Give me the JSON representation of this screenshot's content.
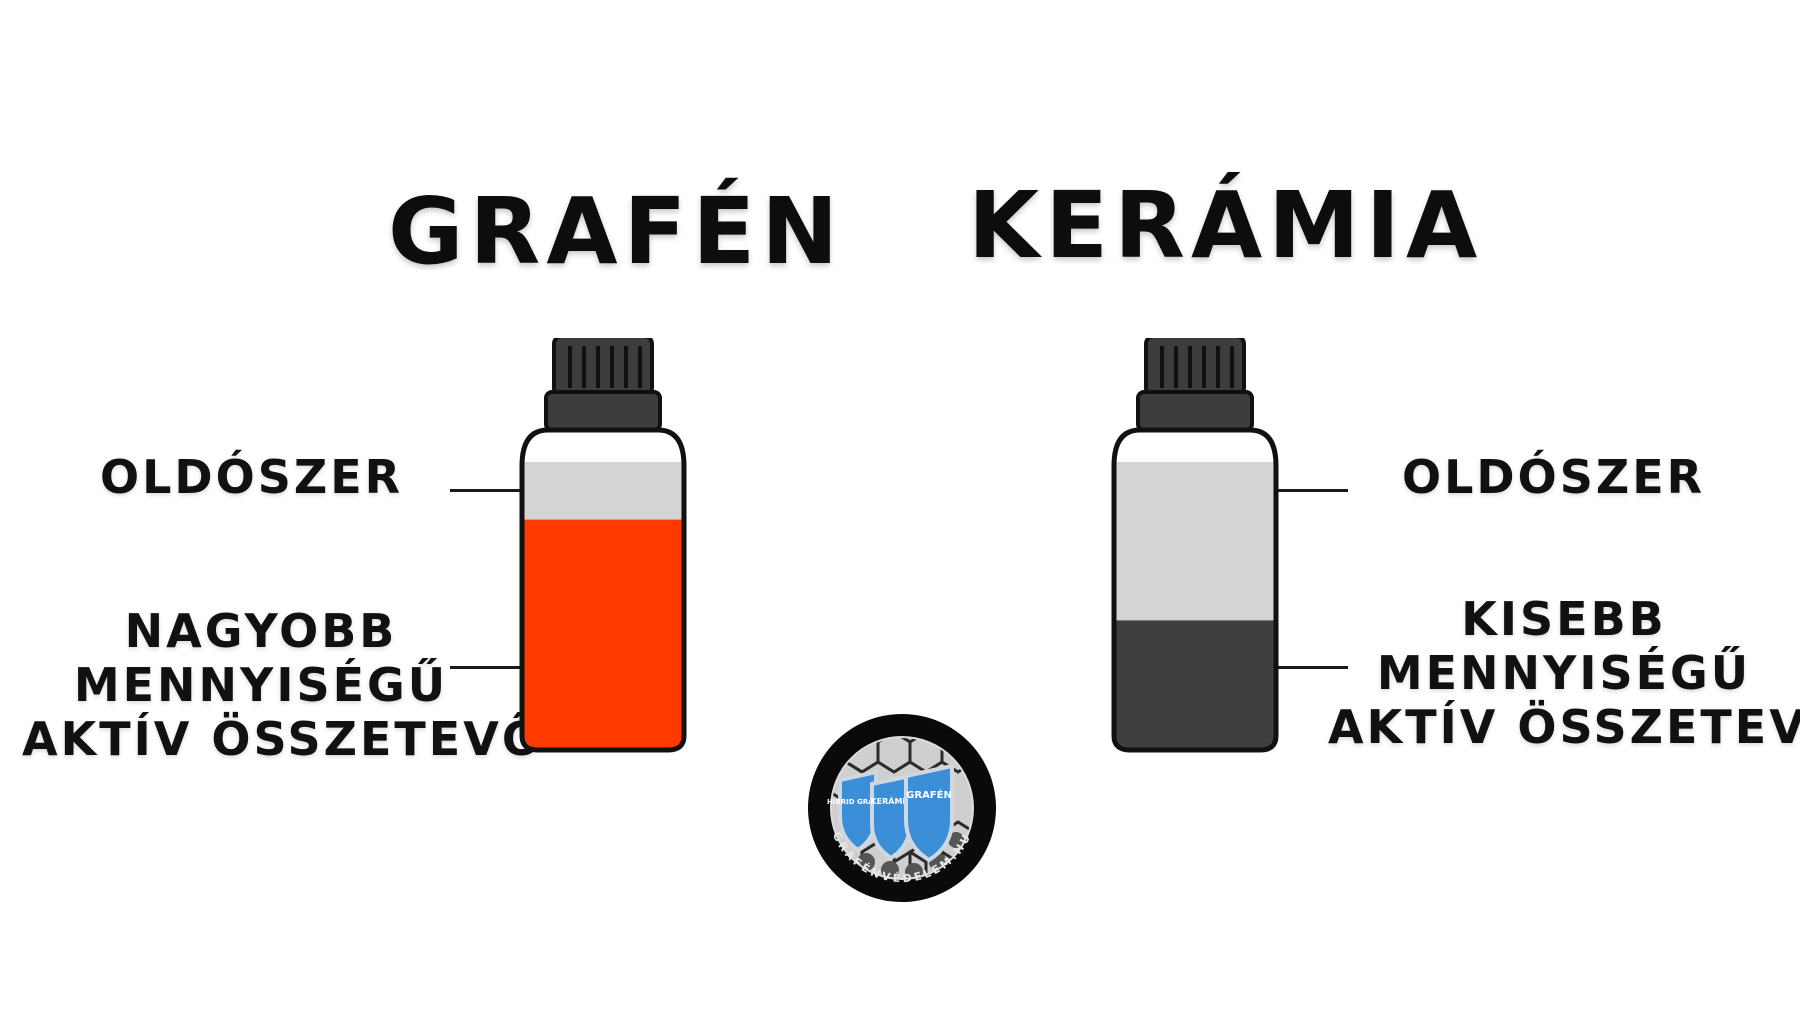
{
  "left": {
    "title": "GRAFÉN",
    "solvent_label": "OLDÓSZER",
    "active_label_lines": [
      "NAGYOBB",
      "MENNYISÉGŰ",
      "AKTÍV ÖSSZETEVŐ"
    ],
    "fill_color": "#ff3a00",
    "solvent_color": "#d4d4d4",
    "active_fraction": 0.8
  },
  "right": {
    "title": "KERÁMIA",
    "solvent_label": "OLDÓSZER",
    "active_label_lines": [
      "KISEBB",
      "MENNYISÉGŰ",
      "AKTÍV ÖSSZETEVŐ"
    ],
    "fill_color": "#3f3f3f",
    "solvent_color": "#d4d4d4",
    "active_fraction": 0.45
  },
  "logo": {
    "shield_labels": [
      "HIBRID GRAFÉN",
      "KERÁMIA",
      "GRAFÉN"
    ],
    "ring_text": "GRAFÉNVÉDELEM.HU",
    "colors": {
      "ring": "#0a0a0a",
      "shield": "#3a8fd8",
      "shield_edge": "#cfd8e0"
    }
  },
  "colors": {
    "cap": "#3d3d3d",
    "outline": "#111111",
    "bottle_body": "#ffffff"
  }
}
